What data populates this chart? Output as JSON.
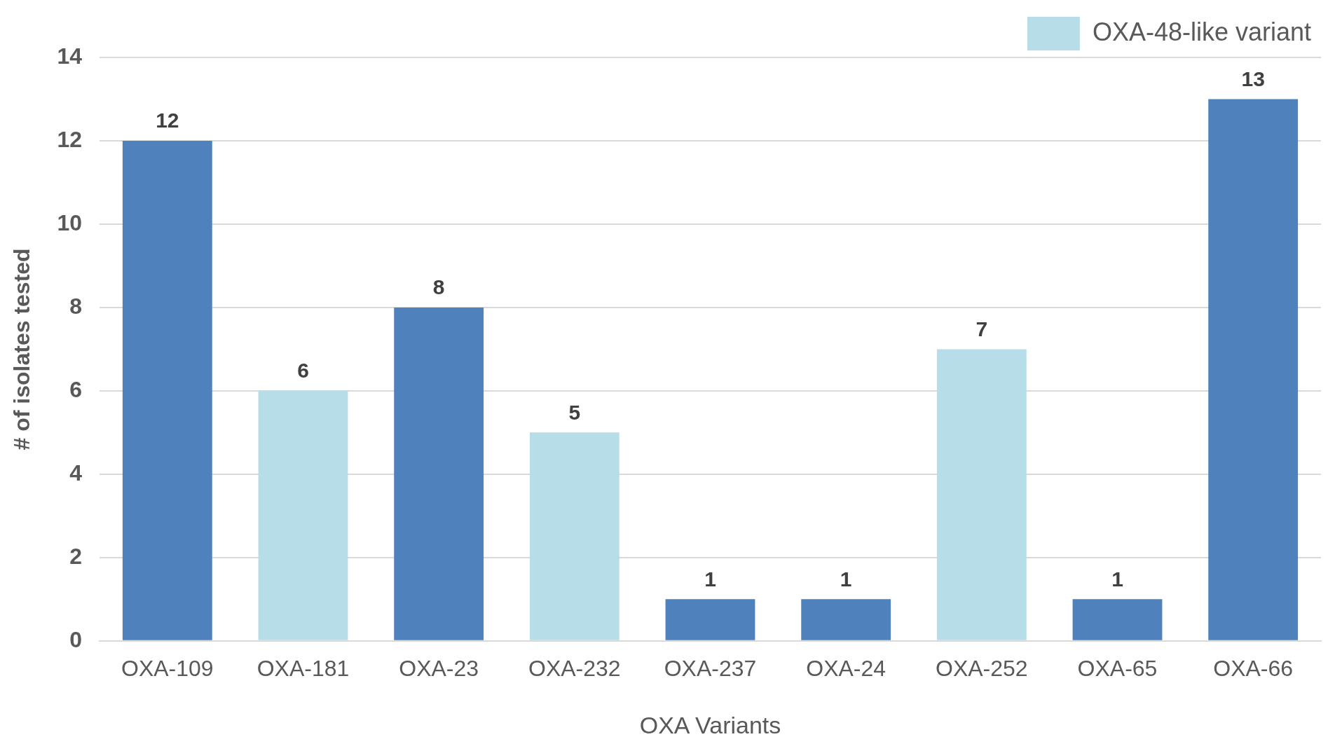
{
  "chart_data": {
    "type": "bar",
    "xlabel": "OXA Variants",
    "ylabel": "# of isolates tested",
    "categories": [
      "OXA-109",
      "OXA-181",
      "OXA-23",
      "OXA-232",
      "OXA-237",
      "OXA-24",
      "OXA-252",
      "OXA-65",
      "OXA-66"
    ],
    "series": [
      {
        "color": "#4f81bd",
        "values": [
          12,
          null,
          8,
          null,
          1,
          1,
          null,
          1,
          13
        ]
      },
      {
        "name": "OXA-48-like variant",
        "color": "#b7dde8",
        "values": [
          null,
          6,
          null,
          5,
          null,
          null,
          7,
          null,
          null
        ]
      }
    ],
    "ylim": [
      0,
      14
    ],
    "yticks": [
      0,
      2,
      4,
      6,
      8,
      10,
      12,
      14
    ],
    "grid": "y",
    "legend": "top right",
    "data_labels": true
  }
}
